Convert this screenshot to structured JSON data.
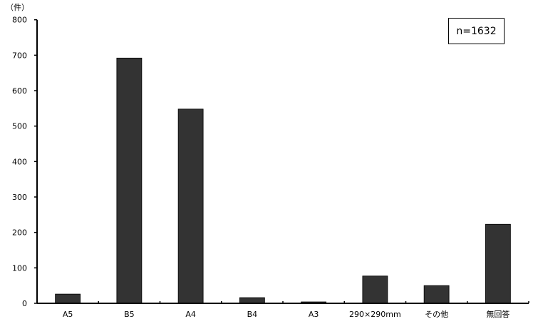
{
  "chart_data": {
    "type": "bar",
    "unit_label": "（件）",
    "categories": [
      "A5",
      "B5",
      "A4",
      "B4",
      "A3",
      "290×290mm",
      "その他",
      "無回答"
    ],
    "values": [
      26,
      692,
      548,
      16,
      4,
      77,
      50,
      223
    ],
    "ylim": [
      0,
      800
    ],
    "yticks": [
      0,
      100,
      200,
      300,
      400,
      500,
      600,
      700,
      800
    ],
    "annotation": "n=1632",
    "grid": false,
    "bar_color": "#333333"
  }
}
